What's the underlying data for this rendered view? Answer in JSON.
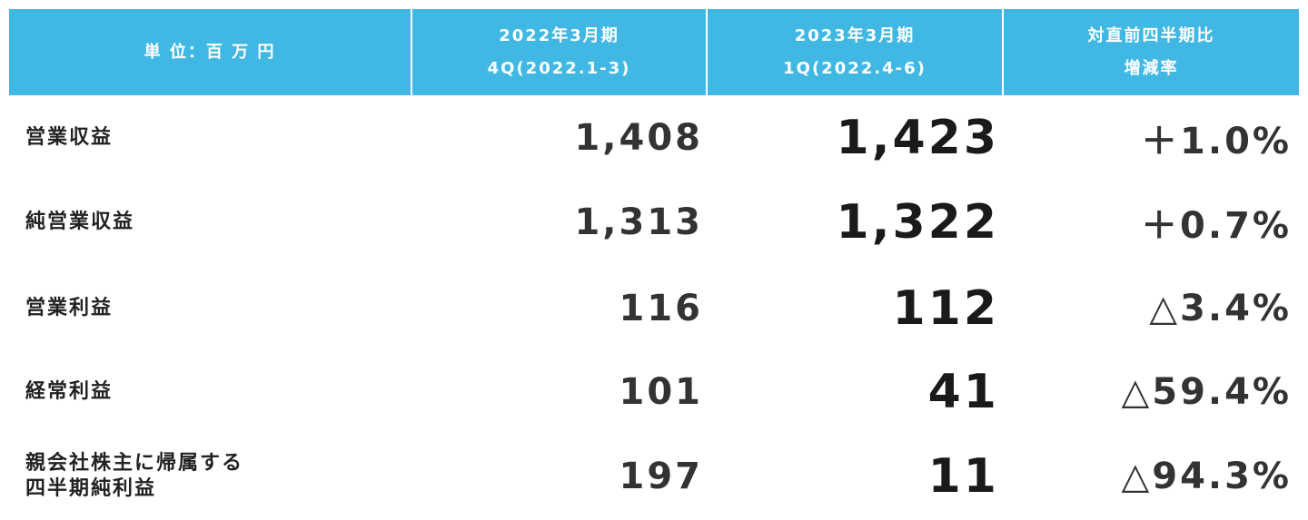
{
  "table": {
    "header": [
      [
        "単 位：百 万 円"
      ],
      [
        "2022年3月期",
        "4Q(2022.1-3)"
      ],
      [
        "2023年3月期",
        "1Q(2022.4-6)"
      ],
      [
        "対直前四半期比",
        "増減率"
      ]
    ],
    "rows": [
      [
        [
          "営業収益"
        ],
        "1,408",
        "1,423",
        "＋1.0%"
      ],
      [
        [
          "純営業収益"
        ],
        "1,313",
        "1,322",
        "＋0.7%"
      ],
      [
        [
          "営業利益"
        ],
        "116",
        "112",
        "△3.4%"
      ],
      [
        [
          "経常利益"
        ],
        "101",
        "41",
        "△59.4%"
      ],
      [
        [
          "親会社株主に帰属する",
          "四半期純利益"
        ],
        "197",
        "11",
        "△94.3%"
      ]
    ]
  }
}
